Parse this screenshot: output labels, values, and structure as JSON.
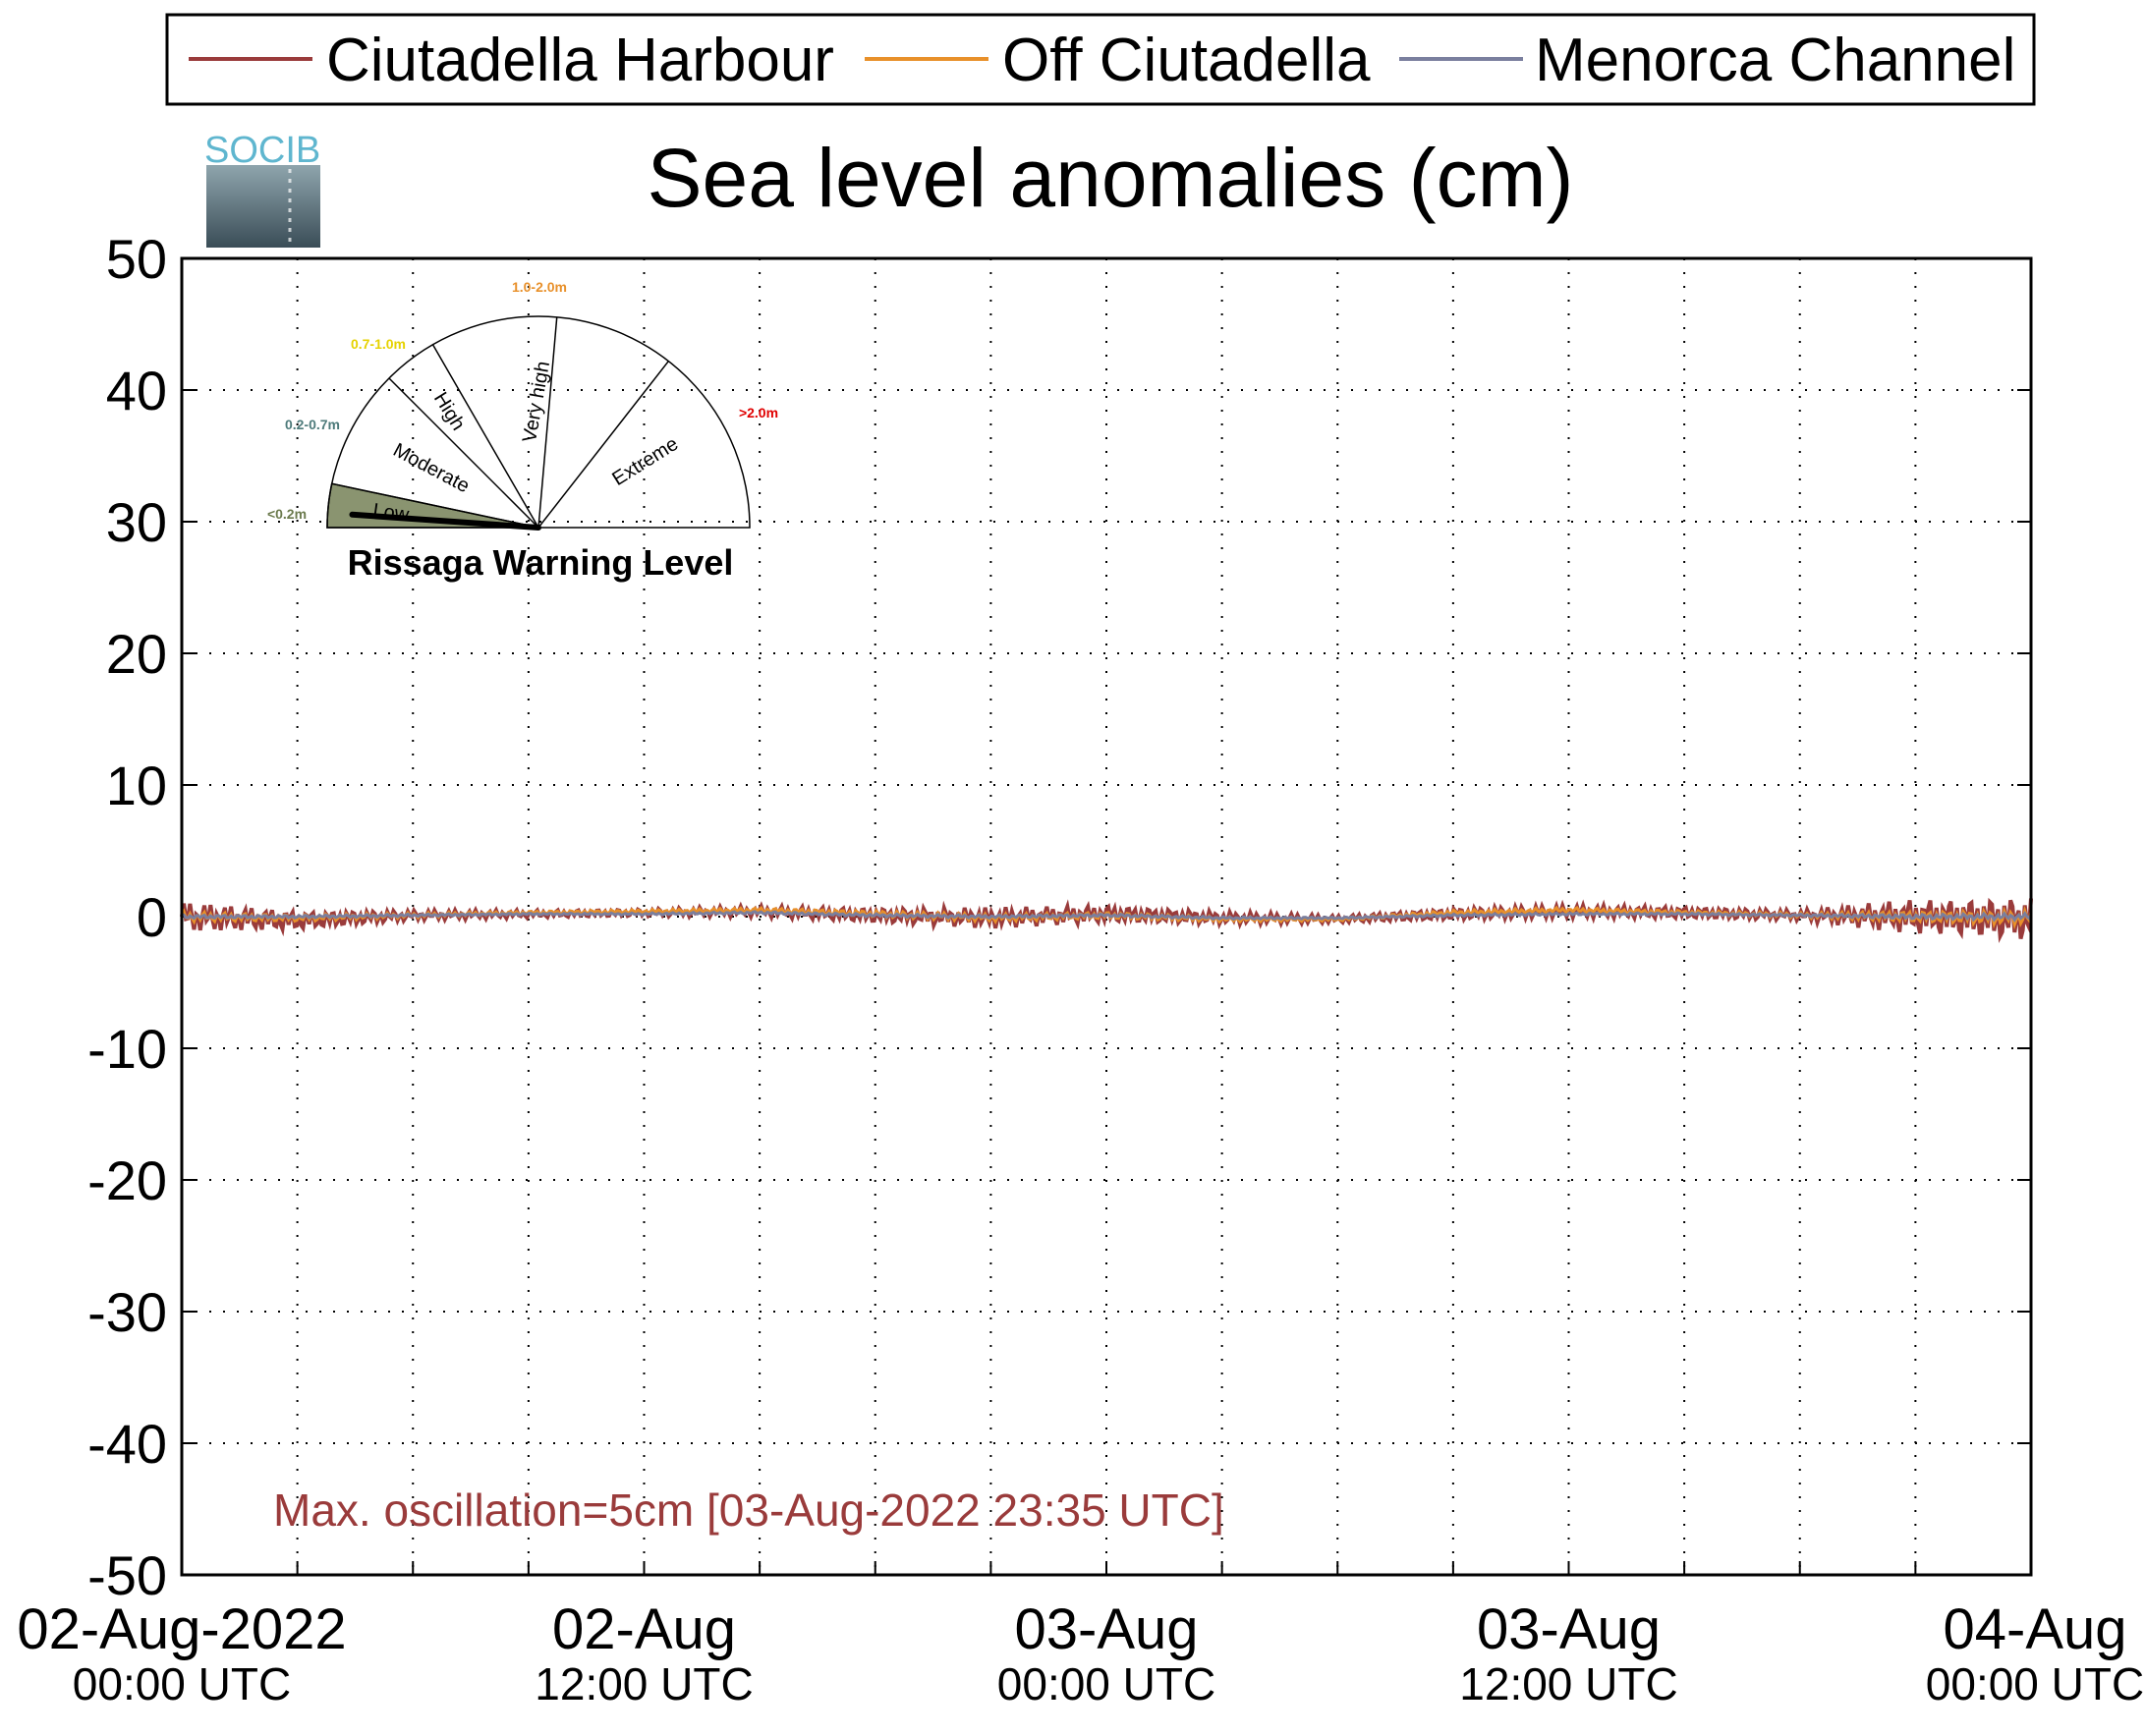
{
  "chart_data": {
    "type": "line",
    "title": "Sea level anomalies (cm)",
    "ylim": [
      -50,
      50
    ],
    "yticks": [
      "50",
      "40",
      "30",
      "20",
      "10",
      "0",
      "-10",
      "-20",
      "-30",
      "-40",
      "-50"
    ],
    "x_range": [
      "02-Aug-2022 00:00 UTC",
      "04-Aug-2022 00:00 UTC"
    ],
    "xticks": [
      {
        "line1": "02-Aug-2022",
        "line2": "00:00 UTC"
      },
      {
        "line1": "02-Aug",
        "line2": "12:00 UTC"
      },
      {
        "line1": "03-Aug",
        "line2": "00:00 UTC"
      },
      {
        "line1": "03-Aug",
        "line2": "12:00 UTC"
      },
      {
        "line1": "04-Aug",
        "line2": "00:00 UTC"
      }
    ],
    "grid": true,
    "legend_position": "top",
    "series": [
      {
        "name": "Ciutadella Harbour",
        "color": "#9a3b3b",
        "x": [
          "02-Aug 00:00",
          "02-Aug 03:00",
          "02-Aug 06:00",
          "02-Aug 09:00",
          "02-Aug 12:00",
          "02-Aug 15:00",
          "02-Aug 18:00",
          "02-Aug 21:00",
          "03-Aug 00:00",
          "03-Aug 03:00",
          "03-Aug 06:00",
          "03-Aug 09:00",
          "03-Aug 12:00",
          "03-Aug 15:00",
          "03-Aug 18:00",
          "03-Aug 21:00",
          "04-Aug 00:00"
        ],
        "values": [
          0.0,
          -0.3,
          0.1,
          0.2,
          0.3,
          0.4,
          0.1,
          -0.1,
          0.2,
          -0.1,
          -0.2,
          0.2,
          0.4,
          0.3,
          0.1,
          0.0,
          -0.2
        ],
        "oscillation_amplitude": [
          1.2,
          0.8,
          0.4,
          0.3,
          0.3,
          0.4,
          0.6,
          0.8,
          0.7,
          0.5,
          0.3,
          0.5,
          0.5,
          0.5,
          0.4,
          1.4,
          1.8
        ]
      },
      {
        "name": "Off Ciutadella",
        "color": "#e8902a",
        "x": [
          "02-Aug 00:00",
          "02-Aug 03:00",
          "02-Aug 06:00",
          "02-Aug 09:00",
          "02-Aug 12:00",
          "02-Aug 15:00",
          "02-Aug 18:00",
          "02-Aug 21:00",
          "03-Aug 00:00",
          "03-Aug 03:00",
          "03-Aug 06:00",
          "03-Aug 09:00",
          "03-Aug 12:00",
          "03-Aug 15:00",
          "03-Aug 18:00",
          "03-Aug 21:00",
          "04-Aug 00:00"
        ],
        "values": [
          0.0,
          -0.1,
          0.1,
          0.3,
          0.4,
          0.5,
          0.2,
          -0.1,
          0.1,
          -0.2,
          -0.2,
          0.3,
          0.5,
          0.3,
          0.1,
          0.0,
          -0.1
        ],
        "oscillation_amplitude": [
          0.4,
          0.3,
          0.2,
          0.15,
          0.15,
          0.2,
          0.3,
          0.3,
          0.3,
          0.2,
          0.15,
          0.2,
          0.2,
          0.2,
          0.2,
          0.5,
          0.6
        ]
      },
      {
        "name": "Menorca Channel",
        "color": "#7a7f9e",
        "x": [
          "02-Aug 00:00",
          "02-Aug 03:00",
          "02-Aug 06:00",
          "02-Aug 09:00",
          "02-Aug 12:00",
          "02-Aug 15:00",
          "02-Aug 18:00",
          "02-Aug 21:00",
          "03-Aug 00:00",
          "03-Aug 03:00",
          "03-Aug 06:00",
          "03-Aug 09:00",
          "03-Aug 12:00",
          "03-Aug 15:00",
          "03-Aug 18:00",
          "03-Aug 21:00",
          "04-Aug 00:00"
        ],
        "values": [
          0.0,
          0.0,
          0.1,
          0.2,
          0.2,
          0.3,
          0.1,
          0.0,
          0.1,
          -0.1,
          -0.1,
          0.1,
          0.2,
          0.2,
          0.1,
          0.0,
          0.0
        ],
        "oscillation_amplitude": [
          0.15,
          0.12,
          0.1,
          0.08,
          0.08,
          0.1,
          0.12,
          0.12,
          0.12,
          0.1,
          0.08,
          0.1,
          0.1,
          0.1,
          0.1,
          0.2,
          0.25
        ]
      }
    ],
    "annotation": "Max. oscillation=5cm [03-Aug-2022 23:35 UTC]"
  },
  "logo": {
    "text": "SOCIB"
  },
  "gauge": {
    "title": "Rissaga Warning Level",
    "current_level": "Low",
    "sectors": [
      {
        "label": "Low",
        "range": "<0.2m",
        "range_color": "#6b7a4d"
      },
      {
        "label": "Moderate",
        "range": "0.2-0.7m",
        "range_color": "#4d7a7a"
      },
      {
        "label": "High",
        "range": "0.7-1.0m",
        "range_color": "#e6d200"
      },
      {
        "label": "Very high",
        "range": "1.0-2.0m",
        "range_color": "#e8902a"
      },
      {
        "label": "Extreme",
        "range": ">2.0m",
        "range_color": "#e00000"
      }
    ],
    "active_fill": "#8a9470"
  }
}
